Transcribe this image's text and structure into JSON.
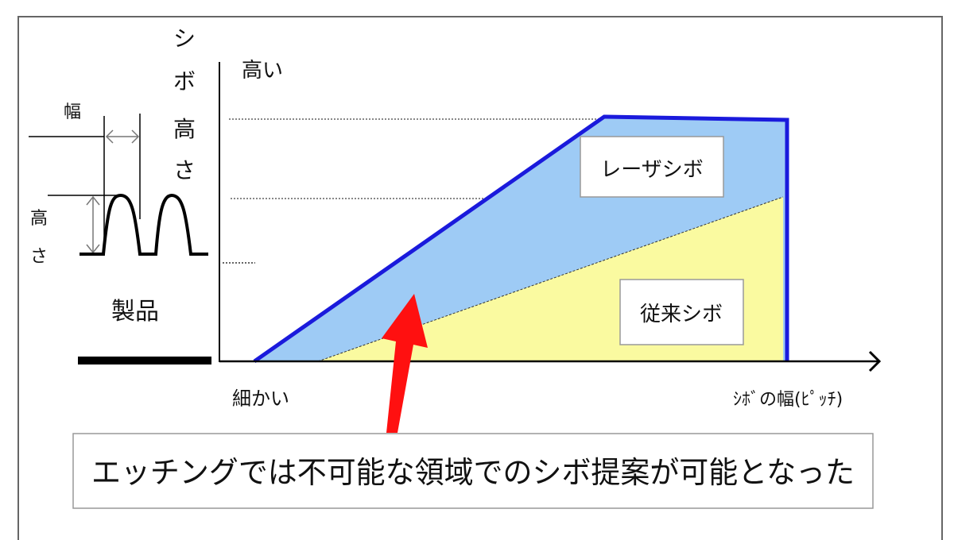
{
  "product": {
    "width_label": "幅",
    "height_label": [
      "高",
      "さ"
    ],
    "caption": "製品"
  },
  "axes": {
    "y_title": [
      "シ",
      "ボ",
      "高",
      "さ"
    ],
    "y_high": "高い",
    "x_low": "細かい",
    "x_title": "ｼﾎﾞの幅(ﾋﾟｯﾁ)"
  },
  "regions": {
    "laser": "レーザシボ",
    "conventional": "従来シボ"
  },
  "callout": "エッチングでは不可能な領域でのシボ提案が可能となった",
  "colors": {
    "laser_fill": "#9ecbf5",
    "laser_outline": "#1a1adc",
    "conventional_fill": "#fafaa0",
    "arrow": "#ff1010"
  }
}
